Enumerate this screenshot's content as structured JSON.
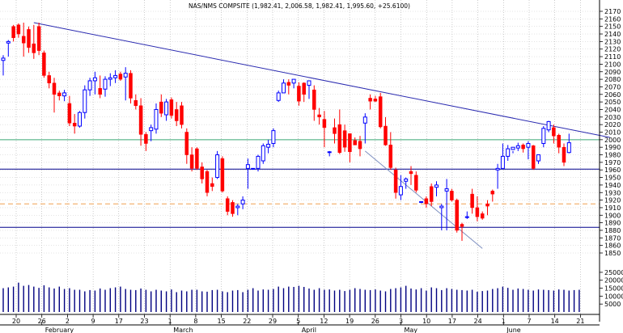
{
  "chart_data": {
    "type": "candlestick",
    "title": "NAS/NMS COMPSITE (1,982.41, 2,006.58, 1,982.41, 1,995.60, +25.6100)",
    "price_axis": {
      "min": 1850,
      "max": 2170,
      "ticks": [
        2170,
        2160,
        2150,
        2140,
        2130,
        2120,
        2110,
        2100,
        2090,
        2080,
        2070,
        2060,
        2050,
        2040,
        2030,
        2020,
        2010,
        2000,
        1990,
        1980,
        1970,
        1960,
        1950,
        1940,
        1930,
        1920,
        1910,
        1900,
        1890,
        1880,
        1870,
        1860,
        1850
      ]
    },
    "volume_axis": {
      "min": 0,
      "max": 27000,
      "ticks": [
        25000,
        20000,
        15000,
        10000,
        5000
      ]
    },
    "day_ticks": [
      "20",
      "26",
      "2",
      "9",
      "17",
      "23",
      "1",
      "8",
      "15",
      "22",
      "29",
      "5",
      "12",
      "19",
      "26",
      "3",
      "10",
      "17",
      "24",
      "1",
      "7",
      "14",
      "21"
    ],
    "month_labels": [
      "February",
      "March",
      "April",
      "May",
      "June"
    ],
    "horizontal_lines": [
      {
        "value": 2000,
        "color": "#3aa874",
        "style": "solid"
      },
      {
        "value": 1961,
        "color": "#00008b",
        "style": "solid"
      },
      {
        "value": 1915,
        "color": "#f0a050",
        "style": "dashed"
      },
      {
        "value": 1884,
        "color": "#00008b",
        "style": "solid"
      }
    ],
    "trendlines": [
      {
        "from": [
          6,
          2155
        ],
        "to": [
          119,
          2003
        ],
        "color": "#2a2ab0"
      },
      {
        "from": [
          71,
          1985
        ],
        "to": [
          94,
          1856
        ],
        "color": "#7d8fc0"
      }
    ],
    "colors": {
      "up": "#0000ff",
      "down": "#ff0000",
      "volume": "#000080"
    },
    "candles": [
      [
        2112,
        2105,
        2085,
        2108
      ],
      [
        2132,
        2128,
        2110,
        2130
      ],
      [
        2152,
        2150,
        2130,
        2135
      ],
      [
        2154,
        2152,
        2135,
        2140
      ],
      [
        2155,
        2137,
        2110,
        2128
      ],
      [
        2150,
        2146,
        2115,
        2122
      ],
      [
        2152,
        2127,
        2107,
        2115
      ],
      [
        2155,
        2150,
        2112,
        2118
      ],
      [
        2118,
        2115,
        2082,
        2085
      ],
      [
        2090,
        2085,
        2068,
        2075
      ],
      [
        2082,
        2075,
        2036,
        2060
      ],
      [
        2065,
        2062,
        2052,
        2058
      ],
      [
        2066,
        2058,
        2051,
        2062
      ],
      [
        2058,
        2048,
        2018,
        2022
      ],
      [
        2034,
        2022,
        2008,
        2018
      ],
      [
        2038,
        2018,
        2016,
        2036
      ],
      [
        2072,
        2036,
        2028,
        2066
      ],
      [
        2082,
        2066,
        2058,
        2078
      ],
      [
        2090,
        2078,
        2060,
        2082
      ],
      [
        2085,
        2068,
        2055,
        2060
      ],
      [
        2084,
        2067,
        2057,
        2080
      ],
      [
        2088,
        2080,
        2071,
        2082
      ],
      [
        2092,
        2082,
        2075,
        2085
      ],
      [
        2090,
        2087,
        2078,
        2080
      ],
      [
        2096,
        2083,
        2052,
        2088
      ],
      [
        2092,
        2088,
        2048,
        2055
      ],
      [
        2060,
        2052,
        2040,
        2045
      ],
      [
        2055,
        2045,
        1992,
        2007
      ],
      [
        2010,
        2007,
        1985,
        1995
      ],
      [
        2020,
        2012,
        1998,
        2016
      ],
      [
        2048,
        2014,
        2008,
        2040
      ],
      [
        2060,
        2050,
        2030,
        2035
      ],
      [
        2054,
        2033,
        2025,
        2050
      ],
      [
        2056,
        2053,
        2028,
        2032
      ],
      [
        2050,
        2040,
        2018,
        2025
      ],
      [
        2050,
        2045,
        2015,
        2020
      ],
      [
        2015,
        2010,
        1968,
        1980
      ],
      [
        1990,
        1980,
        1958,
        1962
      ],
      [
        1990,
        1988,
        1960,
        1962
      ],
      [
        1970,
        1964,
        1942,
        1948
      ],
      [
        1960,
        1958,
        1925,
        1930
      ],
      [
        1950,
        1942,
        1932,
        1938
      ],
      [
        1985,
        1950,
        1948,
        1980
      ],
      [
        1978,
        1975,
        1930,
        1932
      ],
      [
        1925,
        1922,
        1900,
        1905
      ],
      [
        1920,
        1917,
        1898,
        1902
      ],
      [
        1915,
        1910,
        1900,
        1912
      ],
      [
        1925,
        1915,
        1908,
        1920
      ],
      [
        1975,
        1962,
        1935,
        1967
      ],
      [
        1962,
        1962,
        1961,
        1962
      ],
      [
        1980,
        1962,
        1958,
        1978
      ],
      [
        1995,
        1972,
        1968,
        1992
      ],
      [
        2000,
        1990,
        1982,
        1994
      ],
      [
        2015,
        1995,
        1990,
        2012
      ],
      [
        2065,
        2052,
        2050,
        2062
      ],
      [
        2080,
        2062,
        2062,
        2075
      ],
      [
        2080,
        2076,
        2060,
        2072
      ],
      [
        2080,
        2075,
        2068,
        2080
      ],
      [
        2076,
        2071,
        2045,
        2051
      ],
      [
        2076,
        2075,
        2050,
        2060
      ],
      [
        2078,
        2072,
        2054,
        2078
      ],
      [
        2072,
        2066,
        2025,
        2040
      ],
      [
        2042,
        2033,
        2020,
        2030
      ],
      [
        2038,
        2027,
        1990,
        2016
      ],
      [
        1985,
        1984,
        1978,
        1984
      ],
      [
        2028,
        2016,
        1995,
        2008
      ],
      [
        2040,
        2020,
        1981,
        1983
      ],
      [
        2020,
        2012,
        1984,
        1990
      ],
      [
        2008,
        2008,
        1970,
        1984
      ],
      [
        2003,
        1999,
        1993,
        1993
      ],
      [
        2005,
        1998,
        1978,
        1988
      ],
      [
        2035,
        2022,
        1995,
        2030
      ],
      [
        2060,
        2055,
        2040,
        2051
      ],
      [
        2058,
        2054,
        2050,
        2051
      ],
      [
        2062,
        2057,
        2015,
        2017
      ],
      [
        2030,
        2018,
        1992,
        1993
      ],
      [
        2010,
        1993,
        1960,
        1963
      ],
      [
        1963,
        1960,
        1922,
        1930
      ],
      [
        1953,
        1927,
        1920,
        1938
      ],
      [
        1950,
        1945,
        1935,
        1948
      ],
      [
        1965,
        1958,
        1940,
        1955
      ],
      [
        1958,
        1953,
        1930,
        1933
      ],
      [
        1918,
        1918,
        1916,
        1918
      ],
      [
        1925,
        1922,
        1910,
        1915
      ],
      [
        1942,
        1938,
        1912,
        1918
      ],
      [
        1945,
        1937,
        1925,
        1940
      ],
      [
        1915,
        1910,
        1880,
        1912
      ],
      [
        1948,
        1932,
        1880,
        1935
      ],
      [
        1935,
        1932,
        1918,
        1920
      ],
      [
        1922,
        1920,
        1877,
        1880
      ],
      [
        1890,
        1888,
        1866,
        1885
      ],
      [
        1905,
        1897,
        1895,
        1898
      ],
      [
        1935,
        1928,
        1902,
        1910
      ],
      [
        1925,
        1910,
        1892,
        1898
      ],
      [
        1905,
        1902,
        1894,
        1896
      ],
      [
        1920,
        1915,
        1900,
        1912
      ],
      [
        1934,
        1932,
        1918,
        1928
      ],
      [
        1968,
        1960,
        1935,
        1962
      ],
      [
        1995,
        1962,
        1962,
        1978
      ],
      [
        1993,
        1978,
        1972,
        1988
      ],
      [
        1985,
        1987,
        1982,
        1990
      ],
      [
        1996,
        1989,
        1985,
        1992
      ],
      [
        1995,
        1993,
        1983,
        1988
      ],
      [
        1998,
        1990,
        1974,
        1995
      ],
      [
        1993,
        1992,
        1960,
        1962
      ],
      [
        1980,
        1972,
        1968,
        1980
      ],
      [
        2018,
        1995,
        1990,
        2015
      ],
      [
        2025,
        2013,
        2010,
        2024
      ],
      [
        2020,
        2016,
        1995,
        2005
      ],
      [
        2008,
        2006,
        1982,
        1990
      ],
      [
        1995,
        1990,
        1965,
        1970
      ],
      [
        2008,
        1983,
        1982,
        1996
      ]
    ],
    "volumes": [
      15000,
      15500,
      16000,
      18500,
      16500,
      17000,
      16000,
      15200,
      16800,
      15500,
      14800,
      16000,
      14500,
      15000,
      14000,
      14000,
      13000,
      13800,
      13500,
      14800,
      14000,
      15000,
      15500,
      16000,
      14500,
      14000,
      13800,
      14800,
      14000,
      13000,
      14000,
      13500,
      13000,
      14200,
      12500,
      13500,
      13000,
      14000,
      14000,
      13000,
      12800,
      13800,
      14000,
      13000,
      12500,
      13500,
      13800,
      12500,
      14000,
      15000,
      13500,
      14200,
      14000,
      14500,
      16000,
      15000,
      16000,
      15800,
      16500,
      15800,
      14800,
      14000,
      15000,
      14000,
      14200,
      13500,
      14000,
      13200,
      14000,
      15000,
      14500,
      14000,
      13800,
      14200,
      13500,
      13000,
      14500,
      15000,
      15500,
      16500,
      14800,
      14200,
      15000,
      13500,
      15500,
      15000,
      13800,
      15000,
      14500,
      14000,
      13800,
      13500,
      14000,
      12800,
      13200,
      13500,
      14500,
      15000,
      16000,
      15200,
      14000,
      14800,
      14500,
      14000,
      13500,
      14200,
      14000,
      13800,
      13500,
      14200,
      14000,
      13500,
      13800,
      14000
    ]
  }
}
